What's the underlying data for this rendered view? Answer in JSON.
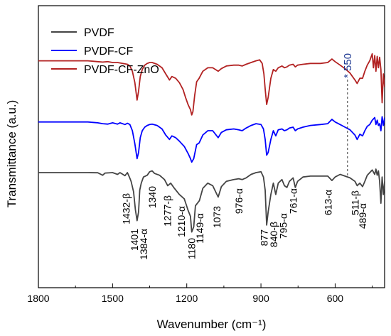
{
  "chart_data": {
    "type": "line",
    "title": "",
    "xlabel": "Wavenumber (cm⁻¹)",
    "ylabel": "Transmittance (a.u.)",
    "xlim": [
      1800,
      400
    ],
    "x_reversed": true,
    "xticks": [
      1800,
      1500,
      1200,
      900,
      600
    ],
    "xtick_labels": [
      "1800",
      "1500",
      "1200",
      "900",
      "600"
    ],
    "y_ticks_shown": false,
    "grid": false,
    "legend_position": "top-left",
    "series": [
      {
        "name": "PVDF",
        "color": "#444444",
        "offset": 0,
        "points": [
          [
            1800,
            0
          ],
          [
            1700,
            0
          ],
          [
            1600,
            0
          ],
          [
            1560,
            -0.02
          ],
          [
            1540,
            -0.3
          ],
          [
            1530,
            -0.05
          ],
          [
            1500,
            0
          ],
          [
            1480,
            -0.2
          ],
          [
            1470,
            0
          ],
          [
            1450,
            -0.35
          ],
          [
            1440,
            0
          ],
          [
            1432,
            -0.5
          ],
          [
            1425,
            -1.0
          ],
          [
            1415,
            -2.2
          ],
          [
            1408,
            -4.2
          ],
          [
            1401,
            -5.5
          ],
          [
            1395,
            -4.5
          ],
          [
            1390,
            -2.0
          ],
          [
            1384,
            -1.2
          ],
          [
            1375,
            -0.5
          ],
          [
            1360,
            -0.3
          ],
          [
            1350,
            0.1
          ],
          [
            1340,
            0.2
          ],
          [
            1330,
            -0.1
          ],
          [
            1310,
            -0.3
          ],
          [
            1290,
            -0.8
          ],
          [
            1277,
            -1.5
          ],
          [
            1265,
            -1.2
          ],
          [
            1250,
            -1.8
          ],
          [
            1230,
            -2.5
          ],
          [
            1210,
            -3.0
          ],
          [
            1195,
            -4.3
          ],
          [
            1185,
            -5.0
          ],
          [
            1180,
            -6.8
          ],
          [
            1172,
            -6.2
          ],
          [
            1165,
            -3.8
          ],
          [
            1149,
            -3.2
          ],
          [
            1135,
            -1.8
          ],
          [
            1115,
            -1.2
          ],
          [
            1095,
            -1.5
          ],
          [
            1073,
            -2.8
          ],
          [
            1060,
            -1.6
          ],
          [
            1040,
            -1.0
          ],
          [
            1010,
            -0.8
          ],
          [
            990,
            -0.7
          ],
          [
            976,
            -0.8
          ],
          [
            960,
            -0.6
          ],
          [
            940,
            -0.2
          ],
          [
            920,
            0
          ],
          [
            900,
            0.1
          ],
          [
            890,
            -0.5
          ],
          [
            883,
            -2.0
          ],
          [
            877,
            -6.0
          ],
          [
            871,
            -4.5
          ],
          [
            860,
            -2.5
          ],
          [
            850,
            -1.2
          ],
          [
            840,
            -2.5
          ],
          [
            830,
            -1.2
          ],
          [
            815,
            -0.8
          ],
          [
            805,
            -1.5
          ],
          [
            795,
            -1.7
          ],
          [
            785,
            -1.0
          ],
          [
            770,
            -0.6
          ],
          [
            761,
            -1.7
          ],
          [
            752,
            -1.0
          ],
          [
            730,
            -0.5
          ],
          [
            700,
            -0.4
          ],
          [
            660,
            -0.4
          ],
          [
            630,
            -0.4
          ],
          [
            613,
            -0.9
          ],
          [
            600,
            -0.5
          ],
          [
            580,
            -0.2
          ],
          [
            560,
            -0.4
          ],
          [
            540,
            -0.6
          ],
          [
            520,
            -1.0
          ],
          [
            511,
            -1.5
          ],
          [
            500,
            -1.2
          ],
          [
            489,
            -1.6
          ],
          [
            480,
            -1.0
          ],
          [
            470,
            -0.3
          ],
          [
            460,
            0
          ],
          [
            450,
            0.3
          ],
          [
            440,
            -0.2
          ],
          [
            435,
            0.4
          ],
          [
            430,
            -0.3
          ],
          [
            425,
            0.2
          ],
          [
            420,
            -1.0
          ],
          [
            415,
            -3.5
          ],
          [
            410,
            -0.5
          ],
          [
            405,
            -2.5
          ],
          [
            400,
            -1.0
          ]
        ]
      },
      {
        "name": "PVDF-CF",
        "color": "#0000ff",
        "offset": 5.8,
        "points": [
          [
            1800,
            0
          ],
          [
            1700,
            0
          ],
          [
            1600,
            0
          ],
          [
            1580,
            -0.05
          ],
          [
            1560,
            -0.1
          ],
          [
            1540,
            -0.2
          ],
          [
            1520,
            -0.25
          ],
          [
            1500,
            -0.1
          ],
          [
            1480,
            -0.25
          ],
          [
            1470,
            -0.1
          ],
          [
            1450,
            -0.3
          ],
          [
            1440,
            -0.15
          ],
          [
            1430,
            -0.3
          ],
          [
            1420,
            -1.0
          ],
          [
            1410,
            -2.5
          ],
          [
            1401,
            -4.2
          ],
          [
            1395,
            -3.5
          ],
          [
            1388,
            -1.8
          ],
          [
            1380,
            -1.0
          ],
          [
            1370,
            -0.6
          ],
          [
            1360,
            -0.4
          ],
          [
            1350,
            -0.3
          ],
          [
            1340,
            -0.25
          ],
          [
            1320,
            -0.4
          ],
          [
            1300,
            -0.8
          ],
          [
            1285,
            -1.5
          ],
          [
            1270,
            -2.0
          ],
          [
            1260,
            -1.6
          ],
          [
            1245,
            -1.8
          ],
          [
            1230,
            -2.2
          ],
          [
            1210,
            -2.8
          ],
          [
            1195,
            -3.6
          ],
          [
            1185,
            -4.2
          ],
          [
            1180,
            -4.6
          ],
          [
            1172,
            -4.2
          ],
          [
            1160,
            -2.6
          ],
          [
            1150,
            -2.4
          ],
          [
            1135,
            -1.5
          ],
          [
            1115,
            -1.0
          ],
          [
            1095,
            -1.0
          ],
          [
            1073,
            -1.8
          ],
          [
            1060,
            -1.2
          ],
          [
            1040,
            -0.9
          ],
          [
            1010,
            -0.8
          ],
          [
            990,
            -0.9
          ],
          [
            976,
            -1.0
          ],
          [
            960,
            -0.7
          ],
          [
            940,
            -0.4
          ],
          [
            920,
            -0.2
          ],
          [
            900,
            -0.3
          ],
          [
            890,
            -0.8
          ],
          [
            883,
            -2.0
          ],
          [
            877,
            -3.8
          ],
          [
            871,
            -3.5
          ],
          [
            860,
            -2.0
          ],
          [
            850,
            -1.0
          ],
          [
            840,
            -1.6
          ],
          [
            830,
            -0.9
          ],
          [
            815,
            -0.8
          ],
          [
            805,
            -1.0
          ],
          [
            795,
            -0.9
          ],
          [
            785,
            -0.7
          ],
          [
            770,
            -0.6
          ],
          [
            761,
            -1.0
          ],
          [
            752,
            -0.8
          ],
          [
            730,
            -0.6
          ],
          [
            700,
            -0.4
          ],
          [
            660,
            -0.3
          ],
          [
            630,
            -0.2
          ],
          [
            613,
            0.3
          ],
          [
            600,
            0
          ],
          [
            580,
            -0.3
          ],
          [
            560,
            -0.6
          ],
          [
            540,
            -0.9
          ],
          [
            520,
            -1.5
          ],
          [
            511,
            -2.0
          ],
          [
            500,
            -1.4
          ],
          [
            489,
            -1.6
          ],
          [
            480,
            -1.0
          ],
          [
            470,
            -0.5
          ],
          [
            460,
            -0.3
          ],
          [
            450,
            0.2
          ],
          [
            440,
            0.5
          ],
          [
            435,
            -0.3
          ],
          [
            430,
            0.2
          ],
          [
            425,
            -0.4
          ],
          [
            420,
            -0.2
          ],
          [
            415,
            -1.0
          ],
          [
            410,
            0.6
          ],
          [
            405,
            -0.4
          ],
          [
            400,
            0.5
          ]
        ]
      },
      {
        "name": "PVDF-CF-ZnO",
        "color": "#b22222",
        "offset": 12.8,
        "points": [
          [
            1800,
            0
          ],
          [
            1700,
            0
          ],
          [
            1600,
            0
          ],
          [
            1580,
            -0.05
          ],
          [
            1560,
            -0.1
          ],
          [
            1540,
            -0.15
          ],
          [
            1520,
            -0.1
          ],
          [
            1500,
            -0.2
          ],
          [
            1480,
            -0.2
          ],
          [
            1460,
            -0.3
          ],
          [
            1440,
            -0.4
          ],
          [
            1430,
            -0.6
          ],
          [
            1420,
            -1.2
          ],
          [
            1410,
            -2.5
          ],
          [
            1401,
            -4.5
          ],
          [
            1395,
            -3.5
          ],
          [
            1388,
            -1.8
          ],
          [
            1380,
            -1.0
          ],
          [
            1370,
            -0.5
          ],
          [
            1360,
            -0.3
          ],
          [
            1350,
            -0.2
          ],
          [
            1340,
            -0.2
          ],
          [
            1320,
            -0.4
          ],
          [
            1300,
            -0.8
          ],
          [
            1285,
            -1.5
          ],
          [
            1270,
            -2.2
          ],
          [
            1260,
            -1.8
          ],
          [
            1245,
            -2.0
          ],
          [
            1230,
            -2.5
          ],
          [
            1215,
            -3.3
          ],
          [
            1205,
            -4.2
          ],
          [
            1195,
            -5.0
          ],
          [
            1185,
            -5.6
          ],
          [
            1180,
            -6.2
          ],
          [
            1175,
            -5.8
          ],
          [
            1168,
            -4.0
          ],
          [
            1160,
            -2.4
          ],
          [
            1150,
            -2.0
          ],
          [
            1135,
            -1.2
          ],
          [
            1115,
            -0.8
          ],
          [
            1095,
            -0.8
          ],
          [
            1073,
            -1.2
          ],
          [
            1060,
            -0.9
          ],
          [
            1040,
            -0.6
          ],
          [
            1010,
            -0.5
          ],
          [
            990,
            -0.5
          ],
          [
            976,
            -0.6
          ],
          [
            960,
            -0.4
          ],
          [
            940,
            -0.2
          ],
          [
            920,
            0
          ],
          [
            905,
            0.1
          ],
          [
            895,
            -0.3
          ],
          [
            888,
            -1.5
          ],
          [
            882,
            -3.5
          ],
          [
            877,
            -5.0
          ],
          [
            871,
            -4.2
          ],
          [
            860,
            -2.0
          ],
          [
            850,
            -1.0
          ],
          [
            840,
            -1.2
          ],
          [
            830,
            -0.8
          ],
          [
            815,
            -0.6
          ],
          [
            805,
            -0.8
          ],
          [
            795,
            -0.7
          ],
          [
            785,
            -0.5
          ],
          [
            770,
            -0.4
          ],
          [
            761,
            -0.7
          ],
          [
            752,
            -0.5
          ],
          [
            730,
            -0.4
          ],
          [
            700,
            -0.3
          ],
          [
            660,
            -0.3
          ],
          [
            630,
            -0.2
          ],
          [
            613,
            0.2
          ],
          [
            600,
            -0.1
          ],
          [
            580,
            -0.5
          ],
          [
            560,
            -0.9
          ],
          [
            540,
            -1.4
          ],
          [
            520,
            -2.2
          ],
          [
            511,
            -2.6
          ],
          [
            500,
            -2.0
          ],
          [
            489,
            -2.0
          ],
          [
            480,
            -1.2
          ],
          [
            470,
            -0.5
          ],
          [
            460,
            0
          ],
          [
            450,
            0.8
          ],
          [
            445,
            -0.8
          ],
          [
            440,
            0.6
          ],
          [
            435,
            -1.2
          ],
          [
            430,
            0.5
          ],
          [
            425,
            -0.8
          ],
          [
            420,
            0.4
          ],
          [
            415,
            -1.0
          ],
          [
            410,
            -4.8
          ],
          [
            405,
            -1.5
          ],
          [
            400,
            -3.0
          ]
        ]
      }
    ],
    "annotations": [
      {
        "text": "1432-β",
        "x": 1432
      },
      {
        "text": "1401",
        "x": 1401
      },
      {
        "text": "1384-α",
        "x": 1384
      },
      {
        "text": "1340",
        "x": 1340
      },
      {
        "text": "1277-β",
        "x": 1277
      },
      {
        "text": "1210-α",
        "x": 1210
      },
      {
        "text": "1180",
        "x": 1180
      },
      {
        "text": "1149-α",
        "x": 1149
      },
      {
        "text": "1073",
        "x": 1073
      },
      {
        "text": "976-α",
        "x": 976
      },
      {
        "text": "877",
        "x": 877
      },
      {
        "text": "840-β",
        "x": 840
      },
      {
        "text": "795-α",
        "x": 795
      },
      {
        "text": "761-α",
        "x": 761
      },
      {
        "text": "613-α",
        "x": 613
      },
      {
        "text": "511-β",
        "x": 511
      },
      {
        "text": "489-α",
        "x": 489
      }
    ],
    "marker": {
      "text": "* 550",
      "x": 550,
      "color": "#1f3a93",
      "line": "dashed"
    }
  }
}
